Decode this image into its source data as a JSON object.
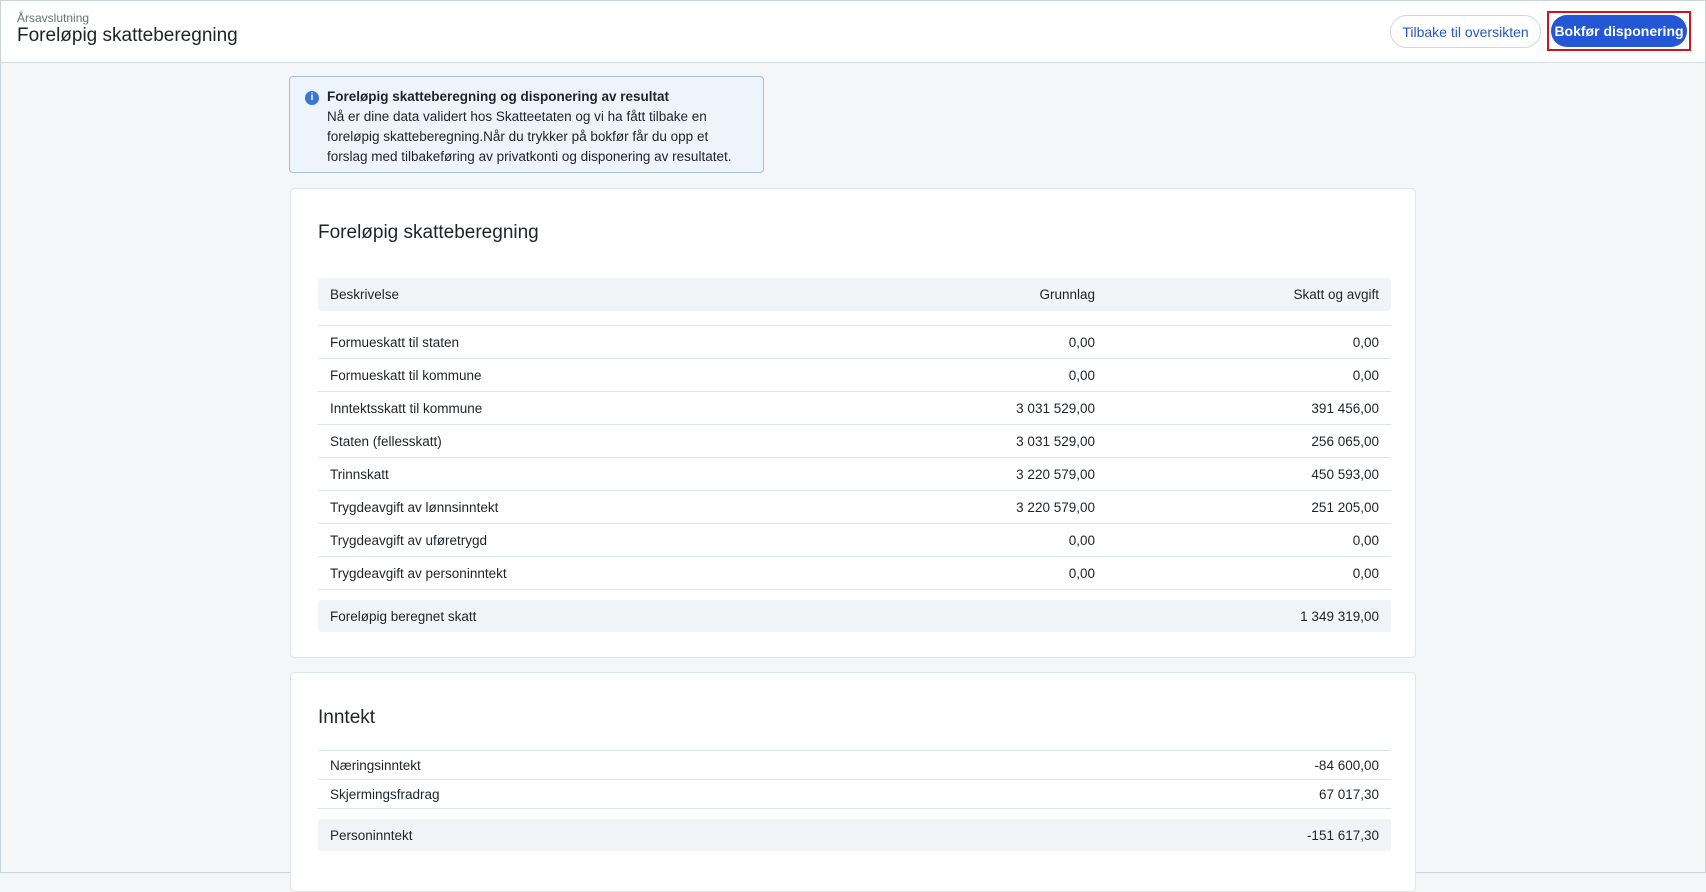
{
  "header": {
    "breadcrumb": "Årsavslutning",
    "title": "Foreløpig skatteberegning",
    "back_label": "Tilbake til oversikten",
    "post_label": "Bokfør disponering"
  },
  "info": {
    "icon": "info-icon",
    "title": "Foreløpig skatteberegning og disponering av resultat",
    "lines": [
      "Nå er dine data validert hos Skatteetaten og vi ha fått tilbake en",
      "foreløpig skatteberegning.Når du trykker på bokfør får du opp et",
      "forslag med tilbakeføring av privatkonti og disponering av resultatet."
    ]
  },
  "tax": {
    "title": "Foreløpig skatteberegning",
    "columns": [
      "Beskrivelse",
      "Grunnlag",
      "Skatt og avgift"
    ],
    "rows": [
      [
        "Formueskatt til staten",
        "0,00",
        "0,00"
      ],
      [
        "Formueskatt til kommune",
        "0,00",
        "0,00"
      ],
      [
        "Inntektsskatt til kommune",
        "3 031 529,00",
        "391 456,00"
      ],
      [
        "Staten (fellesskatt)",
        "3 031 529,00",
        "256 065,00"
      ],
      [
        "Trinnskatt",
        "3 220 579,00",
        "450 593,00"
      ],
      [
        "Trygdeavgift av lønnsinntekt",
        "3 220 579,00",
        "251 205,00"
      ],
      [
        "Trygdeavgift av uføretrygd",
        "0,00",
        "0,00"
      ],
      [
        "Trygdeavgift av personinntekt",
        "0,00",
        "0,00"
      ]
    ],
    "total": [
      "Foreløpig beregnet skatt",
      "1 349 319,00"
    ]
  },
  "income": {
    "title": "Inntekt",
    "rows": [
      [
        "Næringsinntekt",
        "-84 600,00"
      ],
      [
        "Skjermingsfradrag",
        "67 017,30"
      ]
    ],
    "total": [
      "Personinntekt",
      "-151 617,30"
    ]
  }
}
